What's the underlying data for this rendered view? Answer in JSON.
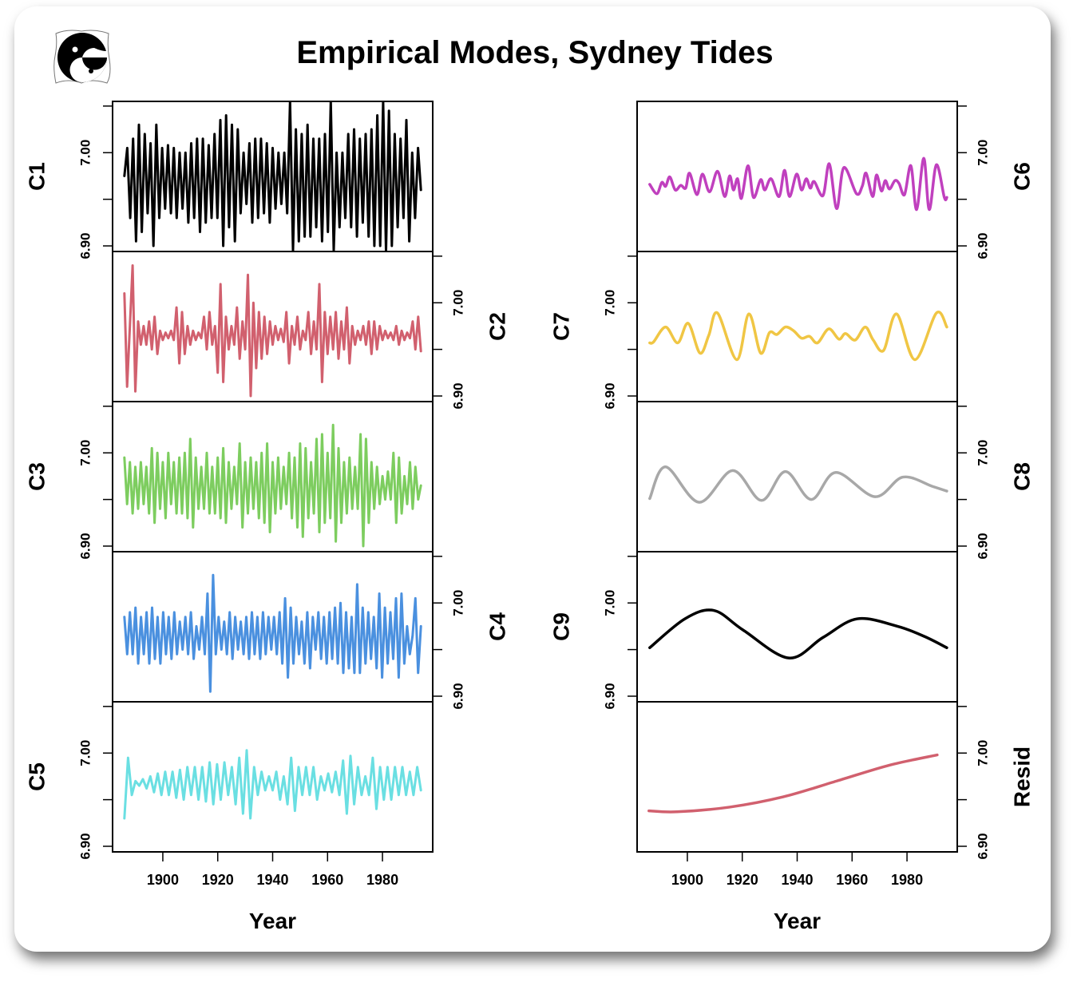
{
  "chart_data": {
    "type": "line",
    "title": "Empirical Modes, Sydney Tides",
    "xlabel": "Year",
    "xlim": [
      1881.7,
      1998.3
    ],
    "x_ticks": [
      1900,
      1920,
      1940,
      1960,
      1980
    ],
    "x_tick_labels": [
      "1900",
      "1920",
      "1940",
      "1960",
      "1980"
    ],
    "ylim": [
      6.894,
      7.055
    ],
    "y_ticks": [
      6.9,
      6.95,
      7.0,
      7.05
    ],
    "y_tick_labels": [
      "6.90",
      "",
      "7.00",
      ""
    ],
    "grid": false,
    "panels": [
      {
        "name": "C1",
        "color": "#000000",
        "x_range": [
          1886,
          1994
        ],
        "values": [
          6.975,
          7.005,
          6.93,
          7.015,
          6.905,
          7.03,
          6.915,
          7.02,
          6.935,
          7.01,
          6.9,
          7.03,
          6.93,
          7.005,
          6.94,
          7.008,
          6.935,
          7.005,
          6.93,
          7.0,
          6.94,
          7.0,
          6.925,
          7.01,
          6.93,
          7.015,
          6.915,
          7.015,
          6.925,
          7.008,
          6.93,
          7.02,
          6.93,
          7.035,
          6.9,
          7.04,
          6.92,
          7.03,
          6.905,
          7.025,
          6.935,
          7.0,
          6.945,
          7.01,
          6.925,
          7.015,
          6.93,
          7.015,
          6.935,
          7.01,
          6.925,
          7.005,
          6.94,
          7.0,
          6.945,
          7.0,
          6.935,
          7.055,
          6.895,
          7.025,
          6.905,
          7.02,
          6.91,
          7.03,
          6.91,
          7.015,
          6.92,
          7.015,
          6.905,
          7.02,
          6.915,
          7.055,
          6.895,
          7.0,
          6.92,
          7.0,
          6.93,
          7.02,
          6.92,
          7.025,
          6.91,
          7.015,
          6.925,
          7.02,
          6.91,
          7.025,
          6.9,
          7.04,
          6.9,
          7.055,
          6.895,
          7.045,
          6.9,
          7.02,
          6.92,
          7.015,
          6.93,
          7.035,
          6.905,
          7.0,
          6.93,
          7.005,
          6.96
        ]
      },
      {
        "name": "C2",
        "color": "#D1606E",
        "x_range": [
          1886,
          1994
        ],
        "values": [
          7.01,
          6.91,
          6.975,
          7.04,
          6.905,
          6.98,
          6.955,
          6.975,
          6.955,
          6.98,
          6.95,
          6.985,
          6.945,
          6.97,
          6.96,
          6.968,
          6.962,
          6.97,
          6.96,
          6.995,
          6.935,
          6.99,
          6.945,
          6.975,
          6.955,
          6.97,
          6.96,
          6.968,
          6.962,
          6.985,
          6.95,
          6.99,
          6.955,
          6.975,
          6.925,
          7.02,
          6.915,
          6.985,
          6.95,
          6.975,
          6.955,
          6.995,
          6.94,
          6.98,
          6.95,
          7.03,
          6.9,
          7.0,
          6.93,
          6.99,
          6.94,
          6.985,
          6.945,
          6.98,
          6.955,
          6.975,
          6.96,
          6.972,
          6.958,
          6.99,
          6.935,
          6.975,
          6.955,
          6.985,
          6.95,
          6.97,
          6.96,
          6.99,
          6.945,
          6.98,
          6.95,
          7.02,
          6.915,
          6.99,
          6.945,
          6.985,
          6.95,
          6.99,
          6.94,
          6.98,
          6.95,
          6.995,
          6.935,
          6.975,
          6.955,
          6.97,
          6.96,
          6.975,
          6.955,
          6.98,
          6.945,
          6.98,
          6.95,
          6.975,
          6.96,
          6.97,
          6.962,
          6.968,
          6.96,
          6.975,
          6.955,
          6.97,
          6.96,
          6.968,
          6.962,
          6.98,
          6.95,
          6.985,
          6.948
        ]
      },
      {
        "name": "C3",
        "color": "#7DCD5F",
        "x_range": [
          1886,
          1994
        ],
        "values": [
          6.995,
          6.945,
          6.99,
          6.935,
          6.985,
          6.94,
          6.99,
          6.945,
          6.985,
          6.935,
          7.005,
          6.925,
          7.0,
          6.94,
          6.99,
          6.93,
          7.0,
          6.945,
          6.99,
          6.935,
          6.995,
          6.935,
          7.0,
          6.93,
          7.015,
          6.92,
          6.995,
          6.94,
          6.985,
          6.94,
          7.0,
          6.935,
          6.985,
          6.935,
          6.995,
          6.93,
          7.005,
          6.925,
          6.99,
          6.94,
          6.985,
          6.945,
          7.01,
          6.92,
          6.99,
          6.935,
          6.995,
          6.94,
          6.99,
          6.93,
          7.0,
          6.925,
          7.01,
          6.915,
          6.99,
          6.935,
          6.995,
          6.94,
          6.985,
          6.945,
          7.0,
          6.93,
          6.995,
          6.92,
          7.01,
          6.91,
          7.005,
          6.93,
          6.99,
          6.935,
          7.015,
          6.915,
          7.02,
          6.925,
          7.0,
          6.93,
          7.03,
          6.905,
          7.005,
          6.925,
          6.99,
          6.935,
          6.995,
          6.94,
          6.985,
          6.94,
          7.02,
          6.9,
          7.015,
          6.925,
          6.99,
          6.94,
          6.985,
          6.945,
          6.975,
          6.95,
          6.98,
          6.95,
          7.0,
          6.925,
          6.995,
          6.935,
          6.975,
          6.945,
          6.99,
          6.94,
          6.985,
          6.95,
          6.965
        ]
      },
      {
        "name": "C4",
        "color": "#4A90DF",
        "x_range": [
          1886,
          1994
        ],
        "values": [
          6.985,
          6.945,
          6.99,
          6.945,
          6.995,
          6.935,
          6.985,
          6.945,
          6.99,
          6.935,
          6.995,
          6.94,
          6.985,
          6.935,
          6.99,
          6.945,
          6.985,
          6.94,
          6.99,
          6.945,
          6.98,
          6.95,
          6.985,
          6.945,
          6.99,
          6.94,
          6.975,
          6.95,
          6.985,
          6.945,
          7.01,
          6.905,
          7.03,
          6.945,
          6.985,
          6.95,
          6.98,
          6.945,
          6.99,
          6.94,
          6.985,
          6.95,
          6.98,
          6.945,
          6.985,
          6.94,
          6.99,
          6.945,
          6.985,
          6.94,
          6.99,
          6.945,
          6.985,
          6.95,
          6.985,
          6.945,
          6.99,
          6.935,
          7.005,
          6.92,
          6.995,
          6.935,
          6.985,
          6.945,
          6.98,
          6.935,
          6.99,
          6.93,
          6.985,
          6.95,
          6.99,
          6.94,
          6.985,
          6.935,
          6.99,
          6.94,
          6.995,
          6.935,
          7.0,
          6.925,
          6.99,
          6.93,
          6.985,
          6.925,
          7.02,
          6.925,
          6.995,
          6.935,
          6.99,
          6.94,
          6.985,
          6.93,
          7.01,
          6.92,
          6.995,
          6.935,
          6.99,
          6.94,
          7.005,
          6.92,
          7.01,
          6.935,
          6.975,
          6.945,
          6.965,
          7.005,
          6.925,
          6.975
        ]
      },
      {
        "name": "C5",
        "color": "#6ADFE2",
        "x_range": [
          1886,
          1994
        ],
        "values": [
          6.93,
          6.995,
          6.955,
          6.97,
          6.965,
          6.972,
          6.962,
          6.975,
          6.958,
          6.978,
          6.955,
          6.98,
          6.955,
          6.98,
          6.952,
          6.982,
          6.95,
          6.985,
          6.955,
          6.985,
          6.95,
          6.985,
          6.948,
          6.99,
          6.945,
          6.988,
          6.95,
          6.99,
          6.955,
          6.985,
          6.945,
          6.995,
          6.935,
          7.003,
          6.93,
          6.985,
          6.955,
          6.98,
          6.96,
          6.975,
          6.96,
          6.98,
          6.95,
          6.975,
          6.945,
          6.995,
          6.938,
          6.985,
          6.955,
          6.985,
          6.955,
          6.985,
          6.95,
          6.975,
          6.96,
          6.978,
          6.958,
          6.98,
          6.955,
          6.992,
          6.935,
          6.997,
          6.945,
          6.985,
          6.955,
          6.975,
          6.955,
          6.995,
          6.94,
          6.985,
          6.95,
          6.985,
          6.95,
          6.985,
          6.955,
          6.985,
          6.955,
          6.98,
          6.955,
          6.985,
          6.96
        ]
      },
      {
        "name": "C6",
        "color": "#C040BE",
        "points": [
          [
            1886.3,
            6.966
          ],
          [
            1888.9,
            6.956
          ],
          [
            1890.7,
            6.968
          ],
          [
            1892.1,
            6.964
          ],
          [
            1893.6,
            6.974
          ],
          [
            1895.6,
            6.96
          ],
          [
            1897.6,
            6.965
          ],
          [
            1899.4,
            6.962
          ],
          [
            1900.8,
            6.978
          ],
          [
            1903.5,
            6.955
          ],
          [
            1905.5,
            6.977
          ],
          [
            1908.1,
            6.958
          ],
          [
            1911.0,
            6.98
          ],
          [
            1913.6,
            6.953
          ],
          [
            1915.4,
            6.975
          ],
          [
            1916.8,
            6.96
          ],
          [
            1918.3,
            6.972
          ],
          [
            1919.7,
            6.951
          ],
          [
            1922.1,
            6.986
          ],
          [
            1924.1,
            6.952
          ],
          [
            1926.7,
            6.971
          ],
          [
            1928.2,
            6.96
          ],
          [
            1930.5,
            6.972
          ],
          [
            1933.4,
            6.953
          ],
          [
            1935.4,
            6.981
          ],
          [
            1937.2,
            6.953
          ],
          [
            1939.8,
            6.977
          ],
          [
            1941.6,
            6.96
          ],
          [
            1943.3,
            6.972
          ],
          [
            1944.8,
            6.962
          ],
          [
            1946.2,
            6.969
          ],
          [
            1949.4,
            6.954
          ],
          [
            1951.7,
            6.988
          ],
          [
            1954.4,
            6.94
          ],
          [
            1957.0,
            6.984
          ],
          [
            1961.6,
            6.956
          ],
          [
            1963.7,
            6.964
          ],
          [
            1965.1,
            6.978
          ],
          [
            1967.5,
            6.953
          ],
          [
            1968.9,
            6.976
          ],
          [
            1970.7,
            6.959
          ],
          [
            1972.1,
            6.97
          ],
          [
            1973.6,
            6.961
          ],
          [
            1975.6,
            6.97
          ],
          [
            1977.1,
            6.967
          ],
          [
            1979.1,
            6.955
          ],
          [
            1981.4,
            6.986
          ],
          [
            1983.5,
            6.939
          ],
          [
            1986.1,
            6.994
          ],
          [
            1988.1,
            6.939
          ],
          [
            1990.7,
            6.987
          ],
          [
            1993.6,
            6.952
          ],
          [
            1994.5,
            6.952
          ]
        ]
      },
      {
        "name": "C7",
        "color": "#F0C644",
        "points": [
          [
            1886.3,
            6.957
          ],
          [
            1887.7,
            6.958
          ],
          [
            1892.1,
            6.974
          ],
          [
            1896.5,
            6.957
          ],
          [
            1900.3,
            6.978
          ],
          [
            1904.6,
            6.946
          ],
          [
            1907.8,
            6.965
          ],
          [
            1911.0,
            6.989
          ],
          [
            1918.0,
            6.939
          ],
          [
            1922.4,
            6.988
          ],
          [
            1926.7,
            6.946
          ],
          [
            1929.9,
            6.968
          ],
          [
            1932.6,
            6.966
          ],
          [
            1935.7,
            6.974
          ],
          [
            1938.7,
            6.97
          ],
          [
            1941.6,
            6.962
          ],
          [
            1944.5,
            6.964
          ],
          [
            1947.4,
            6.957
          ],
          [
            1951.5,
            6.972
          ],
          [
            1955.2,
            6.961
          ],
          [
            1957.6,
            6.967
          ],
          [
            1961.1,
            6.96
          ],
          [
            1964.8,
            6.974
          ],
          [
            1967.7,
            6.96
          ],
          [
            1971.5,
            6.949
          ],
          [
            1976.2,
            6.988
          ],
          [
            1982.9,
            6.939
          ],
          [
            1990.7,
            6.989
          ],
          [
            1994.5,
            6.974
          ]
        ]
      },
      {
        "name": "C8",
        "color": "#A8A8A8",
        "points": [
          [
            1886.3,
            6.951
          ],
          [
            1892.1,
            6.985
          ],
          [
            1904.3,
            6.947
          ],
          [
            1916.5,
            6.981
          ],
          [
            1927.0,
            6.949
          ],
          [
            1935.7,
            6.98
          ],
          [
            1945.1,
            6.95
          ],
          [
            1954.1,
            6.979
          ],
          [
            1968.3,
            6.953
          ],
          [
            1978.5,
            6.974
          ],
          [
            1989.3,
            6.964
          ],
          [
            1994.5,
            6.959
          ]
        ]
      },
      {
        "name": "C9",
        "color": "#000000",
        "points": [
          [
            1886.3,
            6.952
          ],
          [
            1899.1,
            6.983
          ],
          [
            1909.6,
            6.992
          ],
          [
            1920.3,
            6.971
          ],
          [
            1936.9,
            6.941
          ],
          [
            1949.4,
            6.963
          ],
          [
            1961.9,
            6.983
          ],
          [
            1976.5,
            6.975
          ],
          [
            1986.4,
            6.964
          ],
          [
            1994.5,
            6.952
          ]
        ]
      },
      {
        "name": "Resid",
        "color": "#D1606E",
        "points": [
          [
            1886.0,
            6.938
          ],
          [
            1896.2,
            6.937
          ],
          [
            1915.4,
            6.942
          ],
          [
            1934.9,
            6.953
          ],
          [
            1954.4,
            6.97
          ],
          [
            1973.6,
            6.987
          ],
          [
            1991.0,
            6.998
          ]
        ]
      }
    ]
  }
}
